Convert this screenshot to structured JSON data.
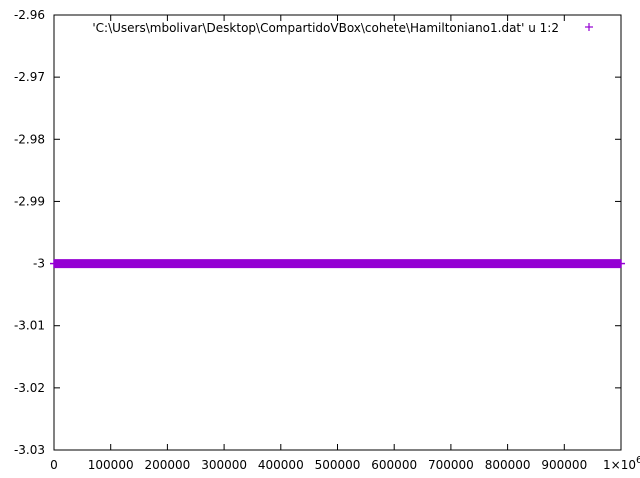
{
  "chart_data": {
    "type": "scatter",
    "title": "",
    "xlabel": "",
    "ylabel": "",
    "xlim": [
      0,
      1000000
    ],
    "ylim": [
      -3.03,
      -2.96
    ],
    "grid": false,
    "legend_position": "top-right",
    "x_ticks": [
      0,
      100000,
      200000,
      300000,
      400000,
      500000,
      600000,
      700000,
      800000,
      900000
    ],
    "x_tick_labels": [
      "0",
      "100000",
      "200000",
      "300000",
      "400000",
      "500000",
      "600000",
      "700000",
      "800000",
      "900000"
    ],
    "x_end_label": "1×10",
    "x_end_label_exponent": "6",
    "y_ticks": [
      -2.96,
      -2.97,
      -2.98,
      -2.99,
      -3,
      -3.01,
      -3.02,
      -3.03
    ],
    "y_tick_labels": [
      "-2.96",
      "-2.97",
      "-2.98",
      "-2.99",
      "-3",
      "-3.01",
      "-3.02",
      "-3.03"
    ],
    "series": [
      {
        "name": "'C:\\Users\\mbolivar\\Desktop\\CompartidoVBox\\cohete\\Hamiltoniano1.dat' u 1:2",
        "color": "#9400d3",
        "marker": "plus",
        "x": [
          0,
          50000,
          100000,
          150000,
          200000,
          250000,
          300000,
          350000,
          400000,
          450000,
          500000,
          550000,
          600000,
          650000,
          700000,
          750000,
          800000,
          850000,
          900000,
          950000,
          1000000
        ],
        "y": [
          -3,
          -3,
          -3,
          -3,
          -3,
          -3,
          -3,
          -3,
          -3,
          -3,
          -3,
          -3,
          -3,
          -3,
          -3,
          -3,
          -3,
          -3,
          -3,
          -3,
          -3
        ]
      }
    ]
  }
}
